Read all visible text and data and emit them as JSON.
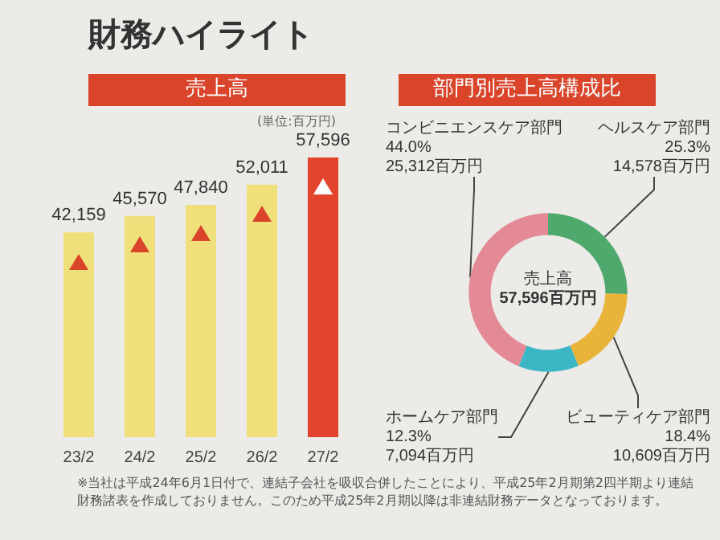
{
  "chart_data": [
    {
      "type": "bar",
      "title": "財務ハイライト",
      "subtitle": "売上高",
      "categories": [
        "23/2",
        "24/2",
        "25/2",
        "26/2",
        "27/2"
      ],
      "values": [
        42159,
        45570,
        47840,
        52011,
        57596
      ],
      "value_labels": [
        "42,159",
        "45,570",
        "47,840",
        "52,011",
        "57,596"
      ],
      "colors": [
        "#efe07c",
        "#efe07c",
        "#efe07c",
        "#efe07c",
        "#e2452c"
      ],
      "annotations": [
        "(単位:百万円)",
        "※当社は平成24年6月1日付で、連結子会社を吸収合併したことにより、平成25年2月期第2四半期より連結財務諸表を作成しておりません。このため平成25年2月期以降は非連結財務データとなっております。"
      ]
    },
    {
      "type": "donut",
      "title": "部門別売上高構成比",
      "categories": [
        "ヘルスケア部門",
        "ビューティケア部門",
        "ホームケア部門",
        "コンビニエンスケア部門"
      ],
      "values": [
        14578,
        10609,
        7094,
        25312
      ],
      "value_labels": [
        "25.3%\n14,578百万円",
        "18.4%\n10,609百万円",
        "12.3%\n7,094百万円",
        "44.0%\n25,312百万円"
      ],
      "colors": [
        "#4fa86c",
        "#e8b43a",
        "#3bb6c4",
        "#e38a96"
      ],
      "annotations": [
        "売上高",
        "57,596百万円"
      ]
    }
  ]
}
